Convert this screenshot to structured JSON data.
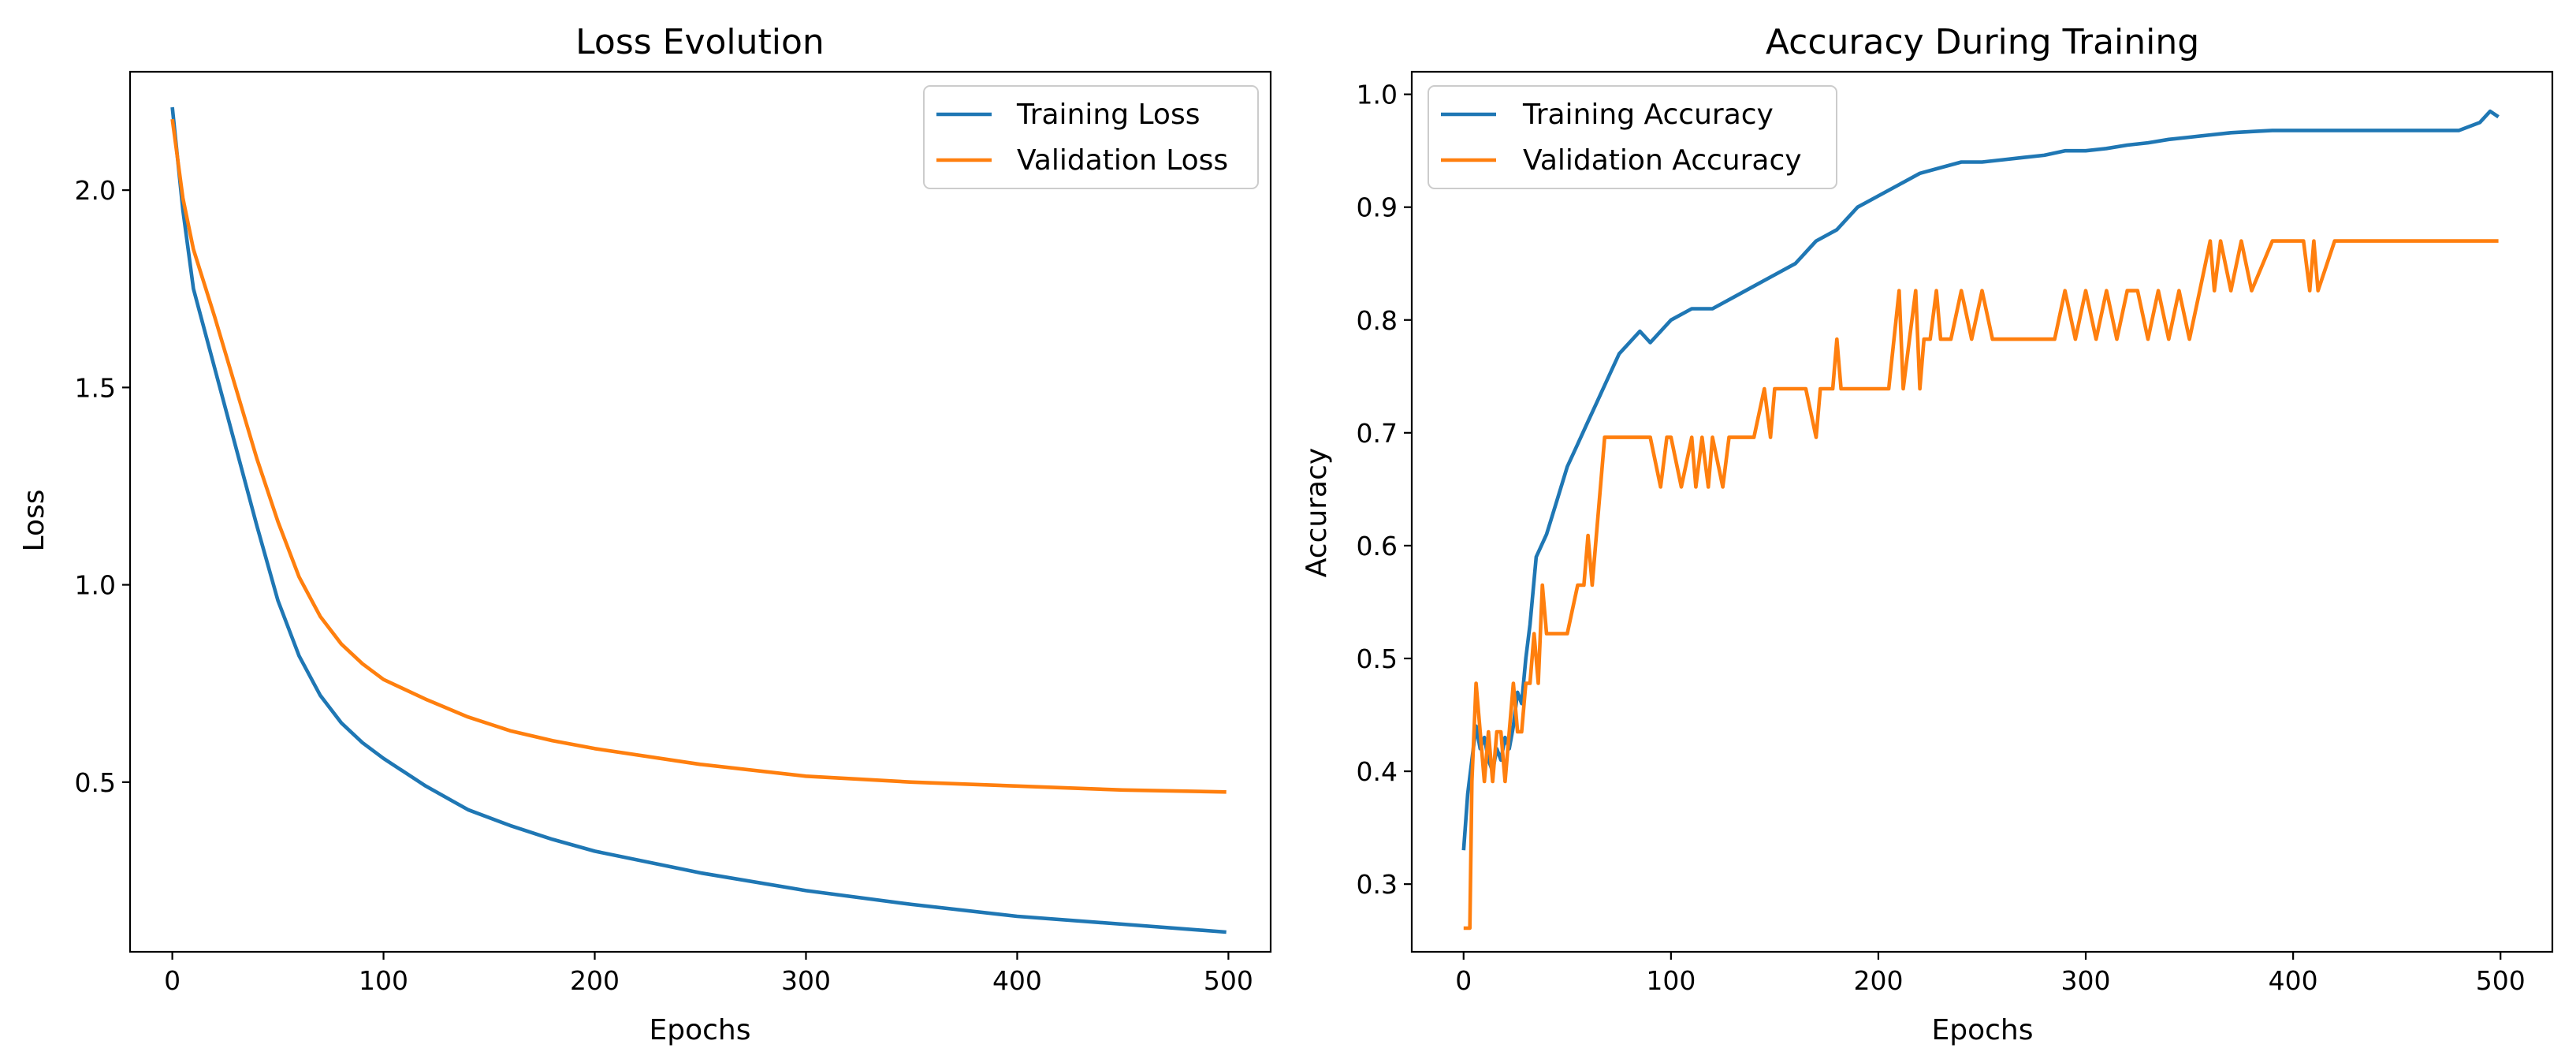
{
  "chart_data": [
    {
      "type": "line",
      "title": "Loss Evolution",
      "xlabel": "Epochs",
      "ylabel": "Loss",
      "xlim": [
        -20,
        520
      ],
      "ylim": [
        0.07,
        2.3
      ],
      "xticks": [
        0,
        100,
        200,
        300,
        400,
        500
      ],
      "xtick_labels": [
        "0",
        "100",
        "200",
        "300",
        "400",
        "500"
      ],
      "yticks": [
        0.5,
        1.0,
        1.5,
        2.0
      ],
      "ytick_labels": [
        "0.5",
        "1.0",
        "1.5",
        "2.0"
      ],
      "legend_position": "upper right",
      "series": [
        {
          "name": "Training Loss",
          "color": "#1f77b4",
          "x": [
            0,
            5,
            10,
            20,
            30,
            40,
            50,
            60,
            70,
            80,
            90,
            100,
            120,
            140,
            160,
            180,
            200,
            250,
            300,
            350,
            400,
            450,
            499
          ],
          "y": [
            2.21,
            1.95,
            1.75,
            1.55,
            1.35,
            1.15,
            0.96,
            0.82,
            0.72,
            0.65,
            0.6,
            0.56,
            0.49,
            0.43,
            0.39,
            0.355,
            0.325,
            0.27,
            0.225,
            0.19,
            0.16,
            0.14,
            0.12
          ]
        },
        {
          "name": "Validation Loss",
          "color": "#ff7f0e",
          "x": [
            0,
            5,
            10,
            20,
            30,
            40,
            50,
            60,
            70,
            80,
            90,
            100,
            120,
            140,
            160,
            180,
            200,
            250,
            300,
            350,
            400,
            450,
            499
          ],
          "y": [
            2.18,
            1.98,
            1.85,
            1.68,
            1.5,
            1.32,
            1.16,
            1.02,
            0.92,
            0.85,
            0.8,
            0.76,
            0.71,
            0.665,
            0.63,
            0.605,
            0.585,
            0.545,
            0.515,
            0.5,
            0.49,
            0.48,
            0.475
          ]
        }
      ]
    },
    {
      "type": "line",
      "title": "Accuracy During Training",
      "xlabel": "Epochs",
      "ylabel": "Accuracy",
      "xlim": [
        -25,
        525
      ],
      "ylim": [
        0.24,
        1.02
      ],
      "xticks": [
        0,
        100,
        200,
        300,
        400,
        500
      ],
      "xtick_labels": [
        "0",
        "100",
        "200",
        "300",
        "400",
        "500"
      ],
      "yticks": [
        0.3,
        0.4,
        0.5,
        0.6,
        0.7,
        0.8,
        0.9,
        1.0
      ],
      "ytick_labels": [
        "0.3",
        "0.4",
        "0.5",
        "0.6",
        "0.7",
        "0.8",
        "0.9",
        "1.0"
      ],
      "legend_position": "upper left",
      "series": [
        {
          "name": "Training Accuracy",
          "color": "#1f77b4",
          "x": [
            0,
            2,
            4,
            6,
            8,
            10,
            12,
            14,
            16,
            18,
            20,
            22,
            24,
            26,
            28,
            30,
            32,
            35,
            40,
            45,
            50,
            55,
            60,
            65,
            70,
            75,
            80,
            85,
            90,
            100,
            110,
            120,
            130,
            140,
            150,
            160,
            170,
            180,
            190,
            200,
            210,
            220,
            230,
            240,
            250,
            260,
            270,
            280,
            290,
            300,
            310,
            320,
            330,
            340,
            350,
            360,
            370,
            380,
            390,
            400,
            420,
            440,
            460,
            480,
            490,
            495,
            499
          ],
          "y": [
            0.33,
            0.38,
            0.41,
            0.44,
            0.42,
            0.43,
            0.41,
            0.4,
            0.42,
            0.41,
            0.43,
            0.42,
            0.44,
            0.47,
            0.46,
            0.5,
            0.53,
            0.59,
            0.61,
            0.64,
            0.67,
            0.69,
            0.71,
            0.73,
            0.75,
            0.77,
            0.78,
            0.79,
            0.78,
            0.8,
            0.81,
            0.81,
            0.82,
            0.83,
            0.84,
            0.85,
            0.87,
            0.88,
            0.9,
            0.91,
            0.92,
            0.93,
            0.935,
            0.94,
            0.94,
            0.942,
            0.944,
            0.946,
            0.95,
            0.95,
            0.952,
            0.955,
            0.957,
            0.96,
            0.962,
            0.964,
            0.966,
            0.967,
            0.968,
            0.968,
            0.968,
            0.968,
            0.968,
            0.968,
            0.975,
            0.985,
            0.98
          ]
        },
        {
          "name": "Validation Accuracy",
          "color": "#ff7f0e",
          "x": [
            0,
            3,
            4,
            6,
            8,
            10,
            12,
            14,
            16,
            18,
            20,
            22,
            24,
            26,
            28,
            30,
            32,
            34,
            36,
            38,
            40,
            42,
            45,
            50,
            55,
            58,
            60,
            62,
            64,
            66,
            68,
            70,
            80,
            90,
            95,
            98,
            100,
            105,
            110,
            112,
            115,
            118,
            120,
            125,
            128,
            130,
            140,
            145,
            148,
            150,
            155,
            160,
            165,
            170,
            172,
            175,
            178,
            180,
            182,
            185,
            190,
            200,
            205,
            210,
            212,
            215,
            218,
            220,
            222,
            225,
            228,
            230,
            235,
            240,
            245,
            250,
            255,
            260,
            270,
            280,
            285,
            290,
            295,
            300,
            305,
            310,
            315,
            320,
            325,
            330,
            335,
            340,
            345,
            350,
            355,
            360,
            362,
            365,
            370,
            375,
            380,
            390,
            400,
            405,
            408,
            410,
            412,
            420,
            440,
            460,
            480,
            499
          ],
          "y": [
            0.261,
            0.261,
            0.391,
            0.478,
            0.435,
            0.391,
            0.435,
            0.391,
            0.435,
            0.435,
            0.391,
            0.435,
            0.478,
            0.435,
            0.435,
            0.478,
            0.478,
            0.522,
            0.478,
            0.565,
            0.522,
            0.522,
            0.522,
            0.522,
            0.565,
            0.565,
            0.609,
            0.565,
            0.609,
            0.652,
            0.696,
            0.696,
            0.696,
            0.696,
            0.652,
            0.696,
            0.696,
            0.652,
            0.696,
            0.652,
            0.696,
            0.652,
            0.696,
            0.652,
            0.696,
            0.696,
            0.696,
            0.739,
            0.696,
            0.739,
            0.739,
            0.739,
            0.739,
            0.696,
            0.739,
            0.739,
            0.739,
            0.783,
            0.739,
            0.739,
            0.739,
            0.739,
            0.739,
            0.826,
            0.739,
            0.783,
            0.826,
            0.739,
            0.783,
            0.783,
            0.826,
            0.783,
            0.783,
            0.826,
            0.783,
            0.826,
            0.783,
            0.783,
            0.783,
            0.783,
            0.783,
            0.826,
            0.783,
            0.826,
            0.783,
            0.826,
            0.783,
            0.826,
            0.826,
            0.783,
            0.826,
            0.783,
            0.826,
            0.783,
            0.826,
            0.87,
            0.826,
            0.87,
            0.826,
            0.87,
            0.826,
            0.87,
            0.87,
            0.87,
            0.826,
            0.87,
            0.826,
            0.87,
            0.87,
            0.87,
            0.87,
            0.87
          ]
        }
      ]
    }
  ]
}
